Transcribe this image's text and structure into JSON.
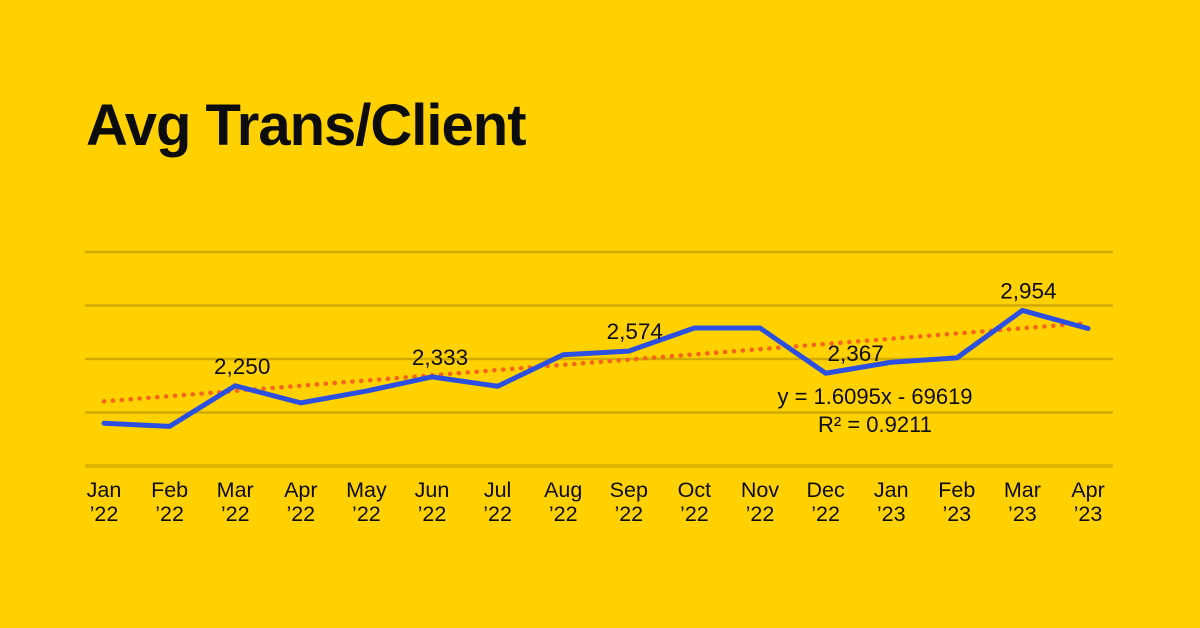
{
  "title": "Avg Trans/Client",
  "colors": {
    "background": "#FFD101",
    "series_line": "#2B4FE1",
    "trendline": "#F5631E",
    "gridline": "#0000002E",
    "axis_line": "#00000021",
    "text": "#0C0C0C"
  },
  "chart_data": {
    "type": "line",
    "title": "Avg Trans/Client",
    "categories": [
      [
        "Jan",
        "’22"
      ],
      [
        "Feb",
        "’22"
      ],
      [
        "Mar",
        "’22"
      ],
      [
        "Apr",
        "’22"
      ],
      [
        "May",
        "’22"
      ],
      [
        "Jun",
        "’22"
      ],
      [
        "Jul",
        "’22"
      ],
      [
        "Aug",
        "’22"
      ],
      [
        "Sep",
        "’22"
      ],
      [
        "Oct",
        "’22"
      ],
      [
        "Nov",
        "’22"
      ],
      [
        "Dec",
        "’22"
      ],
      [
        "Jan",
        "’23"
      ],
      [
        "Feb",
        "’23"
      ],
      [
        "Mar",
        "’23"
      ],
      [
        "Apr",
        "’23"
      ]
    ],
    "series": [
      {
        "name": "Avg Trans/Client",
        "values": [
          1900,
          1870,
          2250,
          2090,
          2200,
          2333,
          2245,
          2540,
          2574,
          2790,
          2790,
          2367,
          2470,
          2510,
          2954,
          2785
        ]
      }
    ],
    "point_labels": [
      {
        "index": 2,
        "text": "2,250",
        "dx": 7
      },
      {
        "index": 5,
        "text": "2,333",
        "dx": 8
      },
      {
        "index": 8,
        "text": "2,574",
        "dx": 6
      },
      {
        "index": 11,
        "text": "2,367",
        "dx": 30
      },
      {
        "index": 14,
        "text": "2,954",
        "dx": 6
      }
    ],
    "trendline": {
      "equation": "y = 1.6095x - 69619",
      "r2": "R² = 0.9211",
      "style": "dotted",
      "start_value": 2104,
      "end_value": 2836
    },
    "xlabel": "",
    "ylabel": "",
    "ylim": [
      1500,
      3500
    ],
    "gridline_values": [
      1500,
      2000,
      2500,
      3000,
      3500
    ],
    "grid": true,
    "legend": false
  }
}
